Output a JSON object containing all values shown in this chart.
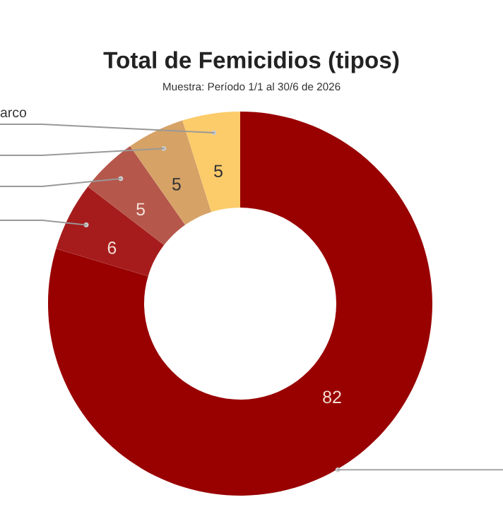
{
  "chart_data": {
    "type": "donut",
    "title": "Total de Femicidios (tipos)",
    "subtitle": "Muestra: Período 1/1 al 30/6 de 2026",
    "categories": [
      null,
      null,
      null,
      null,
      "arco"
    ],
    "values": [
      82,
      6,
      5,
      5,
      5
    ],
    "colors": [
      "#990000",
      "#a61c1c",
      "#b5574b",
      "#d6a266",
      "#fccb6a"
    ],
    "data_labels": true
  }
}
